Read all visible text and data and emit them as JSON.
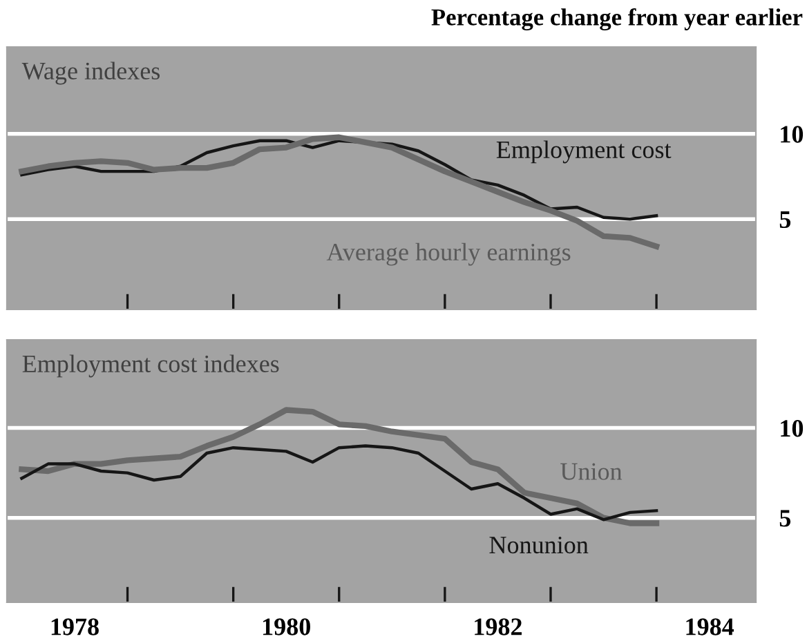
{
  "chart_data": [
    {
      "type": "line",
      "title": "Wage indexes",
      "annotations": [
        "Percentage change from year earlier"
      ],
      "x": [
        1978.0,
        1978.25,
        1978.5,
        1978.75,
        1979.0,
        1979.25,
        1979.5,
        1979.75,
        1980.0,
        1980.25,
        1980.5,
        1980.75,
        1981.0,
        1981.25,
        1981.5,
        1981.75,
        1982.0,
        1982.25,
        1982.5,
        1982.75,
        1983.0,
        1983.25,
        1983.5,
        1983.75,
        1984.0
      ],
      "series": [
        {
          "name": "Employment cost",
          "color": "#161616",
          "values": [
            7.6,
            7.9,
            8.1,
            7.8,
            7.8,
            7.8,
            8.1,
            8.9,
            9.3,
            9.6,
            9.6,
            9.2,
            9.6,
            9.5,
            9.4,
            9.0,
            8.2,
            7.3,
            7.0,
            6.4,
            5.6,
            5.7,
            5.1,
            5.0,
            5.2
          ]
        },
        {
          "name": "Average hourly earnings",
          "color": "#6a6a6a",
          "values": [
            7.8,
            8.1,
            8.3,
            8.4,
            8.3,
            7.9,
            8.0,
            8.0,
            8.3,
            9.1,
            9.2,
            9.7,
            9.8,
            9.5,
            9.2,
            8.5,
            7.8,
            7.2,
            6.6,
            6.0,
            5.5,
            4.9,
            4.0,
            3.9,
            3.4
          ]
        }
      ],
      "xlim": [
        1977.86,
        1984.94
      ],
      "ylim": [
        -0.3,
        15.1
      ],
      "yticks": [
        5,
        10
      ],
      "xticks": [
        {
          "value": 1979,
          "label": null
        },
        {
          "value": 1980,
          "label": null
        },
        {
          "value": 1981,
          "label": null
        },
        {
          "value": 1982,
          "label": null
        },
        {
          "value": 1983,
          "label": null
        },
        {
          "value": 1984,
          "label": null
        }
      ],
      "tick_labels": "y",
      "grid": "y",
      "legend": false
    },
    {
      "type": "line",
      "title": "Employment cost indexes",
      "x": [
        1978.0,
        1978.25,
        1978.5,
        1978.75,
        1979.0,
        1979.25,
        1979.5,
        1979.75,
        1980.0,
        1980.25,
        1980.5,
        1980.75,
        1981.0,
        1981.25,
        1981.5,
        1981.75,
        1982.0,
        1982.25,
        1982.5,
        1982.75,
        1983.0,
        1983.25,
        1983.5,
        1983.75,
        1984.0
      ],
      "series": [
        {
          "name": "Union",
          "color": "#6a6a6a",
          "values": [
            7.7,
            7.6,
            8.0,
            8.0,
            8.2,
            8.3,
            8.4,
            9.0,
            9.5,
            10.2,
            11.0,
            10.9,
            10.2,
            10.1,
            9.8,
            9.6,
            9.4,
            8.1,
            7.7,
            6.4,
            6.1,
            5.8,
            5.0,
            4.7,
            4.7
          ]
        },
        {
          "name": "Nonunion",
          "color": "#161616",
          "values": [
            7.2,
            8.0,
            8.0,
            7.6,
            7.5,
            7.1,
            7.3,
            8.6,
            8.9,
            8.8,
            8.7,
            8.1,
            8.9,
            9.0,
            8.9,
            8.6,
            7.6,
            6.6,
            6.9,
            6.1,
            5.2,
            5.5,
            4.9,
            5.3,
            5.4
          ]
        }
      ],
      "xlim": [
        1977.86,
        1984.94
      ],
      "ylim": [
        0.3,
        14.9
      ],
      "yticks": [
        5,
        10
      ],
      "xticks": [
        {
          "value": 1978.5,
          "label": "1978"
        },
        {
          "value": 1979,
          "label": null
        },
        {
          "value": 1980,
          "label": null
        },
        {
          "value": 1980.5,
          "label": "1980"
        },
        {
          "value": 1981,
          "label": null
        },
        {
          "value": 1982,
          "label": null
        },
        {
          "value": 1982.5,
          "label": "1982"
        },
        {
          "value": 1983,
          "label": null
        },
        {
          "value": 1984,
          "label": null
        },
        {
          "value": 1984.5,
          "label": "1984"
        }
      ],
      "grid": "y",
      "legend": false
    }
  ]
}
